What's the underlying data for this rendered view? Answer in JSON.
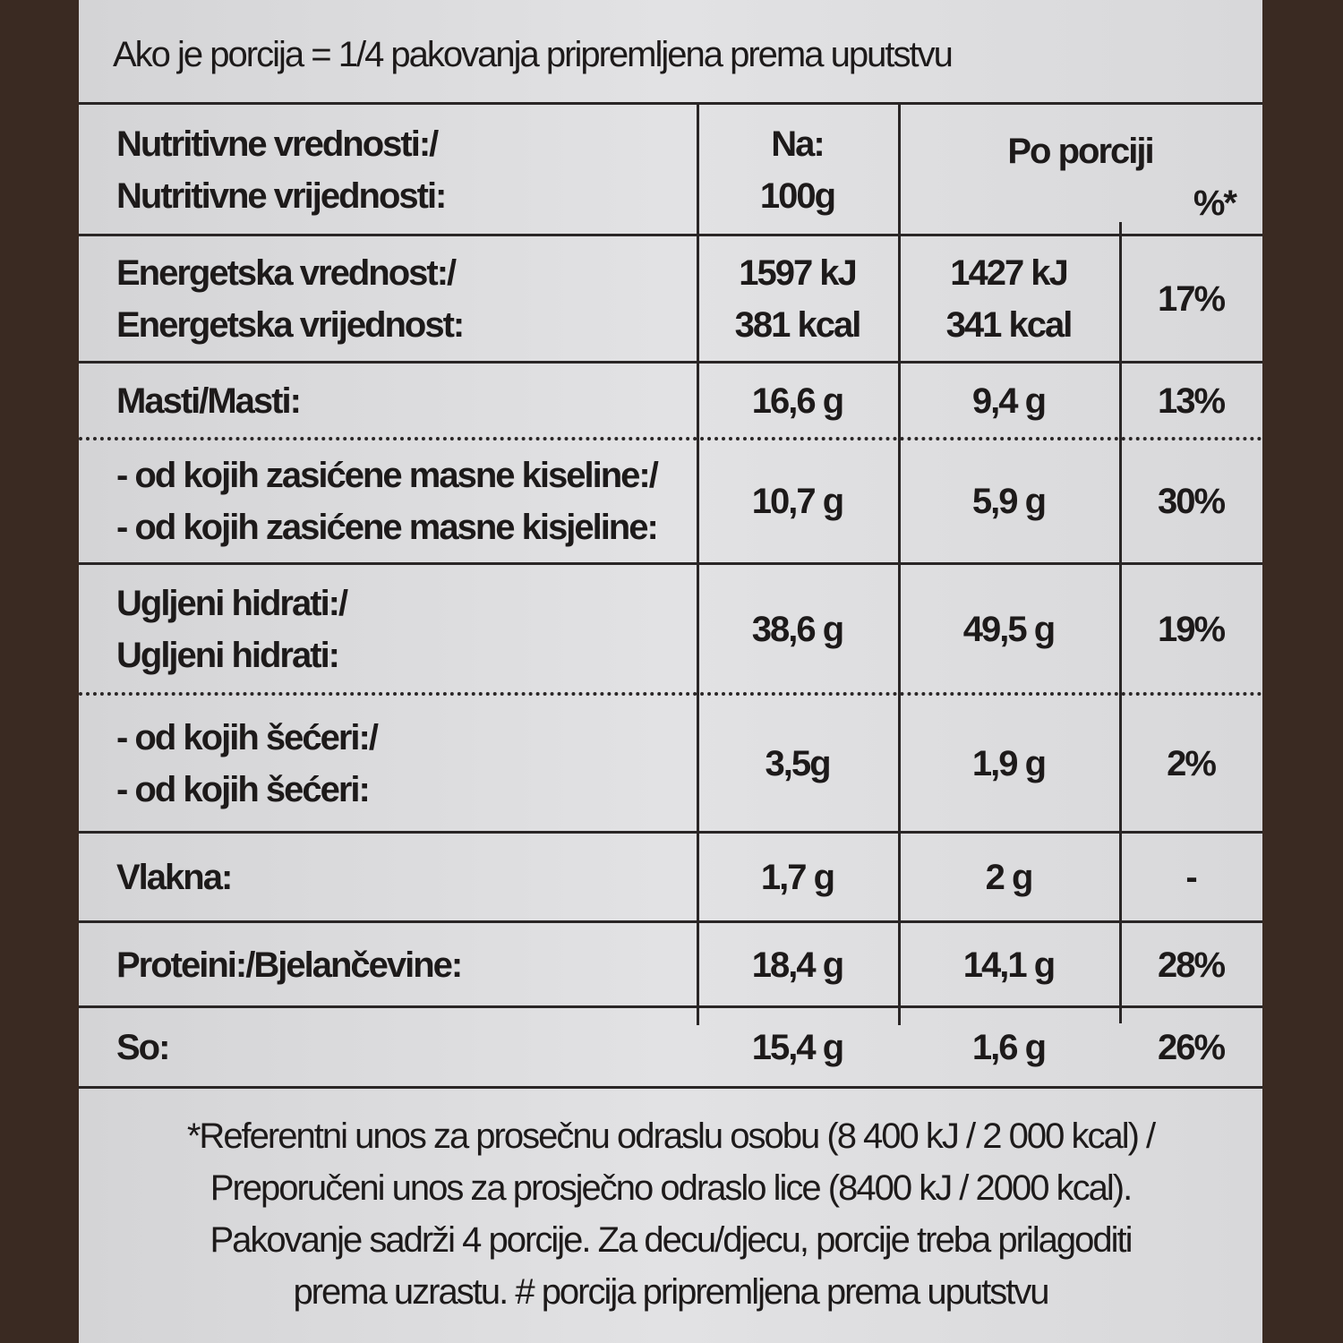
{
  "header": {
    "serving": "Ako je porcija = 1/4 pakovanja pripremljena prema uputstvu"
  },
  "table": {
    "columns": [
      [
        "Nutritivne vrednosti:/",
        "Nutritivne vrijednosti:"
      ],
      [
        "Na:",
        "100g"
      ],
      [
        "Po porciji"
      ],
      [
        "%*"
      ]
    ],
    "rows": [
      {
        "label": [
          "Energetska vrednost:/",
          "Energetska vrijednost:"
        ],
        "per100": [
          "1597 kJ",
          "381 kcal"
        ],
        "portion": [
          "1427 kJ",
          "341 kcal"
        ],
        "percent": [
          "17%"
        ]
      },
      {
        "label": [
          "Masti/Masti:"
        ],
        "per100": [
          "16,6 g"
        ],
        "portion": [
          "9,4 g"
        ],
        "percent": [
          "13%"
        ]
      },
      {
        "label": [
          "- od kojih zasićene masne kiseline:/",
          "- od kojih zasićene masne kisjeline:"
        ],
        "per100": [
          "10,7 g"
        ],
        "portion": [
          "5,9 g"
        ],
        "percent": [
          "30%"
        ]
      },
      {
        "label": [
          "Ugljeni hidrati:/",
          "Ugljeni hidrati:"
        ],
        "per100": [
          "38,6 g"
        ],
        "portion": [
          "49,5 g"
        ],
        "percent": [
          "19%"
        ]
      },
      {
        "label": [
          "- od kojih šećeri:/",
          "- od kojih šećeri:"
        ],
        "per100": [
          "3,5g"
        ],
        "portion": [
          "1,9 g"
        ],
        "percent": [
          "2%"
        ]
      },
      {
        "label": [
          "Vlakna:"
        ],
        "per100": [
          "1,7 g"
        ],
        "portion": [
          "2 g"
        ],
        "percent": [
          "-"
        ]
      },
      {
        "label": [
          "Proteini:/Bjelančevine:"
        ],
        "per100": [
          "18,4 g"
        ],
        "portion": [
          "14,1 g"
        ],
        "percent": [
          "28%"
        ]
      },
      {
        "label": [
          "So:"
        ],
        "per100": [
          "15,4 g"
        ],
        "portion": [
          "1,6 g"
        ],
        "percent": [
          "26%"
        ]
      }
    ]
  },
  "footnote": [
    "*Referentni unos za prosečnu odraslu osobu (8 400 kJ / 2 000 kcal) /",
    "Preporučeni unos za prosječno odraslo lice (8400 kJ / 2000 kcal).",
    "Pakovanje sadrži 4 porcije.  Za decu/djecu, porcije treba prilagoditi",
    "prema uzrastu. # porcija pripremljena prema uputstvu"
  ]
}
